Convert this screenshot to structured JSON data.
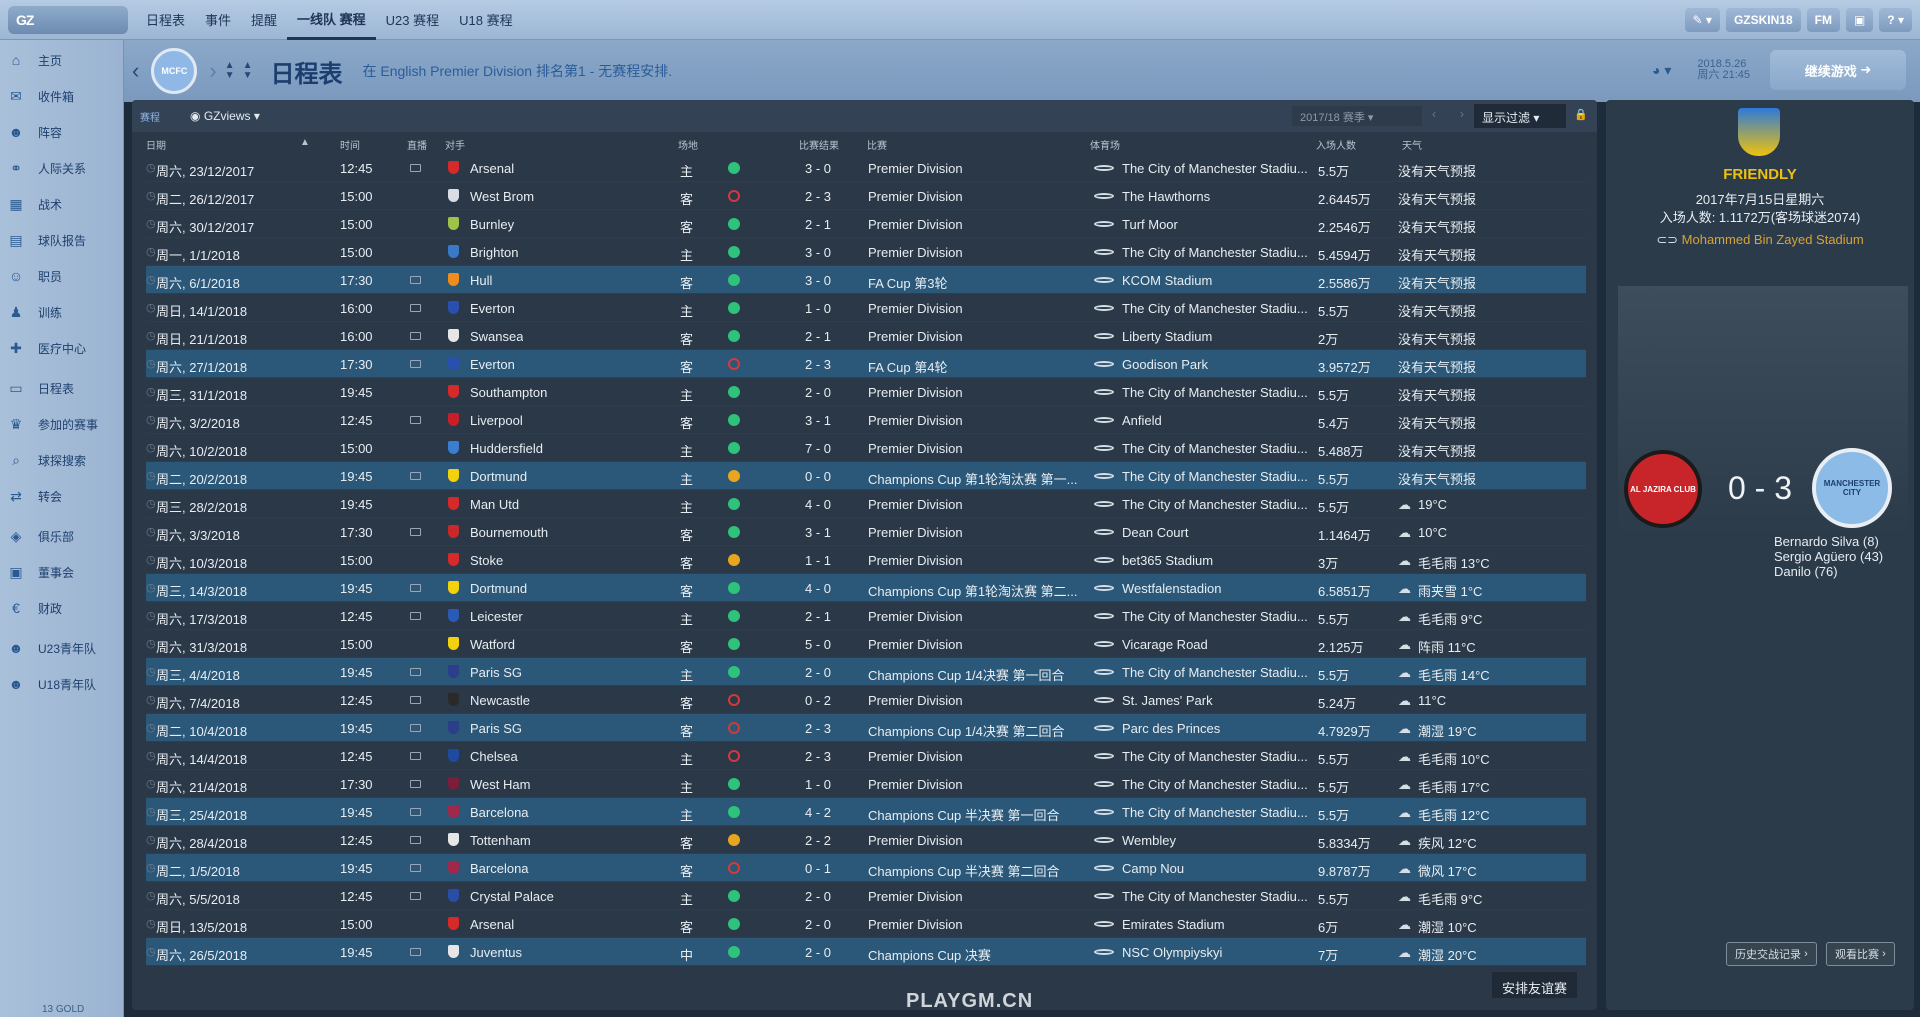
{
  "topbar": {
    "logo": "GZ",
    "tabs": [
      "日程表",
      "事件",
      "提醒",
      "一线队 赛程",
      "U23 赛程",
      "U18 赛程"
    ],
    "active_tab": 3,
    "skin": "GZSKIN18",
    "fm": "FM",
    "help": "?"
  },
  "sidebar": {
    "items": [
      {
        "label": "主页",
        "icon": "home-icon"
      },
      {
        "label": "收件箱",
        "icon": "inbox-icon"
      },
      {
        "label": "阵容",
        "icon": "squad-icon"
      },
      {
        "label": "人际关系",
        "icon": "relationships-icon"
      },
      {
        "label": "战术",
        "icon": "tactics-icon"
      },
      {
        "label": "球队报告",
        "icon": "report-icon"
      },
      {
        "label": "职员",
        "icon": "staff-icon"
      },
      {
        "label": "训练",
        "icon": "training-icon"
      },
      {
        "label": "医疗中心",
        "icon": "medical-icon"
      },
      {
        "label": "日程表",
        "icon": "calendar-icon"
      },
      {
        "label": "参加的赛事",
        "icon": "trophy-icon"
      },
      {
        "label": "球探搜索",
        "icon": "scouting-icon"
      },
      {
        "label": "转会",
        "icon": "transfer-icon"
      },
      {
        "label": "俱乐部",
        "icon": "club-icon"
      },
      {
        "label": "董事会",
        "icon": "board-icon"
      },
      {
        "label": "财政",
        "icon": "finance-icon"
      },
      {
        "label": "U23青年队",
        "icon": "u23-icon"
      },
      {
        "label": "U18青年队",
        "icon": "u18-icon"
      }
    ],
    "gold": "13 GOLD"
  },
  "header": {
    "title": "日程表",
    "subtitle": "在 English Premier Division 排名第1 - 无赛程安排.",
    "date_line1": "2018.5.26",
    "date_line2": "周六 21:45",
    "continue": "继续游戏"
  },
  "toolbar": {
    "tab": "赛程",
    "view": "GZviews",
    "season": "2017/18 赛季",
    "filter": "显示过滤"
  },
  "columns": {
    "date": "日期",
    "time": "时间",
    "tv": "直播",
    "opponent": "对手",
    "venue": "场地",
    "result": "比赛结果",
    "competition": "比赛",
    "stadium": "体育场",
    "attendance": "入场人数",
    "weather": "天气"
  },
  "fixtures": [
    {
      "date": "周六, 23/12/2017",
      "time": "12:45",
      "tv": true,
      "opp": "Arsenal",
      "color": "#d62a2a",
      "venue": "主",
      "res": "win",
      "score": "3 - 0",
      "comp": "Premier Division",
      "stadium": "The City of Manchester Stadiu...",
      "att": "5.5万",
      "weather": "没有天气预报",
      "hl": false
    },
    {
      "date": "周二, 26/12/2017",
      "time": "15:00",
      "tv": false,
      "opp": "West Brom",
      "color": "#d8dde6",
      "venue": "客",
      "res": "lose",
      "score": "2 - 3",
      "comp": "Premier Division",
      "stadium": "The Hawthorns",
      "att": "2.6445万",
      "weather": "没有天气预报",
      "hl": false
    },
    {
      "date": "周六, 30/12/2017",
      "time": "15:00",
      "tv": false,
      "opp": "Burnley",
      "color": "#a0c24a",
      "venue": "客",
      "res": "win",
      "score": "2 - 1",
      "comp": "Premier Division",
      "stadium": "Turf Moor",
      "att": "2.2546万",
      "weather": "没有天气预报",
      "hl": false
    },
    {
      "date": "周一, 1/1/2018",
      "time": "15:00",
      "tv": false,
      "opp": "Brighton",
      "color": "#3a78c8",
      "venue": "主",
      "res": "win",
      "score": "3 - 0",
      "comp": "Premier Division",
      "stadium": "The City of Manchester Stadiu...",
      "att": "5.4594万",
      "weather": "没有天气预报",
      "hl": false
    },
    {
      "date": "周六, 6/1/2018",
      "time": "17:30",
      "tv": true,
      "opp": "Hull",
      "color": "#f08c1c",
      "venue": "客",
      "res": "win",
      "score": "3 - 0",
      "comp": "FA Cup 第3轮",
      "stadium": "KCOM Stadium",
      "att": "2.5586万",
      "weather": "没有天气预报",
      "hl": true
    },
    {
      "date": "周日, 14/1/2018",
      "time": "16:00",
      "tv": true,
      "opp": "Everton",
      "color": "#2850b0",
      "venue": "主",
      "res": "win",
      "score": "1 - 0",
      "comp": "Premier Division",
      "stadium": "The City of Manchester Stadiu...",
      "att": "5.5万",
      "weather": "没有天气预报",
      "hl": false
    },
    {
      "date": "周日, 21/1/2018",
      "time": "16:00",
      "tv": true,
      "opp": "Swansea",
      "color": "#e6e6e6",
      "venue": "客",
      "res": "win",
      "score": "2 - 1",
      "comp": "Premier Division",
      "stadium": "Liberty Stadium",
      "att": "2万",
      "weather": "没有天气预报",
      "hl": false
    },
    {
      "date": "周六, 27/1/2018",
      "time": "17:30",
      "tv": true,
      "opp": "Everton",
      "color": "#2850b0",
      "venue": "客",
      "res": "lose",
      "score": "2 - 3",
      "comp": "FA Cup 第4轮",
      "stadium": "Goodison Park",
      "att": "3.9572万",
      "weather": "没有天气预报",
      "hl": true
    },
    {
      "date": "周三, 31/1/2018",
      "time": "19:45",
      "tv": false,
      "opp": "Southampton",
      "color": "#d62a2a",
      "venue": "主",
      "res": "win",
      "score": "2 - 0",
      "comp": "Premier Division",
      "stadium": "The City of Manchester Stadiu...",
      "att": "5.5万",
      "weather": "没有天气预报",
      "hl": false
    },
    {
      "date": "周六, 3/2/2018",
      "time": "12:45",
      "tv": true,
      "opp": "Liverpool",
      "color": "#c81e2a",
      "venue": "客",
      "res": "win",
      "score": "3 - 1",
      "comp": "Premier Division",
      "stadium": "Anfield",
      "att": "5.4万",
      "weather": "没有天气预报",
      "hl": false
    },
    {
      "date": "周六, 10/2/2018",
      "time": "15:00",
      "tv": false,
      "opp": "Huddersfield",
      "color": "#3a7ed0",
      "venue": "主",
      "res": "win",
      "score": "7 - 0",
      "comp": "Premier Division",
      "stadium": "The City of Manchester Stadiu...",
      "att": "5.488万",
      "weather": "没有天气预报",
      "hl": false
    },
    {
      "date": "周二, 20/2/2018",
      "time": "19:45",
      "tv": true,
      "opp": "Dortmund",
      "color": "#f2d20c",
      "venue": "主",
      "res": "draw",
      "score": "0 - 0",
      "comp": "Champions Cup 第1轮淘汰赛 第一...",
      "stadium": "The City of Manchester Stadiu...",
      "att": "5.5万",
      "weather": "没有天气预报",
      "hl": true
    },
    {
      "date": "周三, 28/2/2018",
      "time": "19:45",
      "tv": false,
      "opp": "Man Utd",
      "color": "#d62a2a",
      "venue": "主",
      "res": "win",
      "score": "4 - 0",
      "comp": "Premier Division",
      "stadium": "The City of Manchester Stadiu...",
      "att": "5.5万",
      "weather": "19°C",
      "hl": false
    },
    {
      "date": "周六, 3/3/2018",
      "time": "17:30",
      "tv": true,
      "opp": "Bournemouth",
      "color": "#c8282a",
      "venue": "客",
      "res": "win",
      "score": "3 - 1",
      "comp": "Premier Division",
      "stadium": "Dean Court",
      "att": "1.1464万",
      "weather": "10°C",
      "hl": false
    },
    {
      "date": "周六, 10/3/2018",
      "time": "15:00",
      "tv": false,
      "opp": "Stoke",
      "color": "#d62a2a",
      "venue": "客",
      "res": "draw",
      "score": "1 - 1",
      "comp": "Premier Division",
      "stadium": "bet365 Stadium",
      "att": "3万",
      "weather": "毛毛雨 13°C",
      "hl": false
    },
    {
      "date": "周三, 14/3/2018",
      "time": "19:45",
      "tv": true,
      "opp": "Dortmund",
      "color": "#f2d20c",
      "venue": "客",
      "res": "win",
      "score": "4 - 0",
      "comp": "Champions Cup 第1轮淘汰赛 第二...",
      "stadium": "Westfalenstadion",
      "att": "6.5851万",
      "weather": "雨夹雪 1°C",
      "hl": true
    },
    {
      "date": "周六, 17/3/2018",
      "time": "12:45",
      "tv": true,
      "opp": "Leicester",
      "color": "#2a5ab8",
      "venue": "主",
      "res": "win",
      "score": "2 - 1",
      "comp": "Premier Division",
      "stadium": "The City of Manchester Stadiu...",
      "att": "5.5万",
      "weather": "毛毛雨 9°C",
      "hl": false
    },
    {
      "date": "周六, 31/3/2018",
      "time": "15:00",
      "tv": false,
      "opp": "Watford",
      "color": "#f2d20c",
      "venue": "客",
      "res": "win",
      "score": "5 - 0",
      "comp": "Premier Division",
      "stadium": "Vicarage Road",
      "att": "2.125万",
      "weather": "阵雨 11°C",
      "hl": false
    },
    {
      "date": "周三, 4/4/2018",
      "time": "19:45",
      "tv": true,
      "opp": "Paris SG",
      "color": "#2a3e8c",
      "venue": "主",
      "res": "win",
      "score": "2 - 0",
      "comp": "Champions Cup 1/4决赛 第一回合",
      "stadium": "The City of Manchester Stadiu...",
      "att": "5.5万",
      "weather": "毛毛雨 14°C",
      "hl": true
    },
    {
      "date": "周六, 7/4/2018",
      "time": "12:45",
      "tv": true,
      "opp": "Newcastle",
      "color": "#2a2a2a",
      "venue": "客",
      "res": "lose",
      "score": "0 - 2",
      "comp": "Premier Division",
      "stadium": "St. James' Park",
      "att": "5.24万",
      "weather": "11°C",
      "hl": false
    },
    {
      "date": "周二, 10/4/2018",
      "time": "19:45",
      "tv": true,
      "opp": "Paris SG",
      "color": "#2a3e8c",
      "venue": "客",
      "res": "lose",
      "score": "2 - 3",
      "comp": "Champions Cup 1/4决赛 第二回合",
      "stadium": "Parc des Princes",
      "att": "4.7929万",
      "weather": "潮湿 19°C",
      "hl": true
    },
    {
      "date": "周六, 14/4/2018",
      "time": "12:45",
      "tv": true,
      "opp": "Chelsea",
      "color": "#1e4aa0",
      "venue": "主",
      "res": "lose",
      "score": "2 - 3",
      "comp": "Premier Division",
      "stadium": "The City of Manchester Stadiu...",
      "att": "5.5万",
      "weather": "毛毛雨 10°C",
      "hl": false
    },
    {
      "date": "周六, 21/4/2018",
      "time": "17:30",
      "tv": true,
      "opp": "West Ham",
      "color": "#7a1e3a",
      "venue": "主",
      "res": "win",
      "score": "1 - 0",
      "comp": "Premier Division",
      "stadium": "The City of Manchester Stadiu...",
      "att": "5.5万",
      "weather": "毛毛雨 17°C",
      "hl": false
    },
    {
      "date": "周三, 25/4/2018",
      "time": "19:45",
      "tv": true,
      "opp": "Barcelona",
      "color": "#a0284a",
      "venue": "主",
      "res": "win",
      "score": "4 - 2",
      "comp": "Champions Cup 半决赛 第一回合",
      "stadium": "The City of Manchester Stadiu...",
      "att": "5.5万",
      "weather": "毛毛雨 12°C",
      "hl": true
    },
    {
      "date": "周六, 28/4/2018",
      "time": "12:45",
      "tv": true,
      "opp": "Tottenham",
      "color": "#e6e6e6",
      "venue": "客",
      "res": "draw",
      "score": "2 - 2",
      "comp": "Premier Division",
      "stadium": "Wembley",
      "att": "5.8334万",
      "weather": "疾风 12°C",
      "hl": false
    },
    {
      "date": "周二, 1/5/2018",
      "time": "19:45",
      "tv": true,
      "opp": "Barcelona",
      "color": "#a0284a",
      "venue": "客",
      "res": "lose",
      "score": "0 - 1",
      "comp": "Champions Cup 半决赛 第二回合",
      "stadium": "Camp Nou",
      "att": "9.8787万",
      "weather": "微风 17°C",
      "hl": true
    },
    {
      "date": "周六, 5/5/2018",
      "time": "12:45",
      "tv": true,
      "opp": "Crystal Palace",
      "color": "#2a4ea8",
      "venue": "主",
      "res": "win",
      "score": "2 - 0",
      "comp": "Premier Division",
      "stadium": "The City of Manchester Stadiu...",
      "att": "5.5万",
      "weather": "毛毛雨 9°C",
      "hl": false
    },
    {
      "date": "周日, 13/5/2018",
      "time": "15:00",
      "tv": false,
      "opp": "Arsenal",
      "color": "#d62a2a",
      "venue": "客",
      "res": "win",
      "score": "2 - 0",
      "comp": "Premier Division",
      "stadium": "Emirates Stadium",
      "att": "6万",
      "weather": "潮湿 10°C",
      "hl": false
    },
    {
      "date": "周六, 26/5/2018",
      "time": "19:45",
      "tv": true,
      "opp": "Juventus",
      "color": "#e6e6e6",
      "venue": "中",
      "res": "win",
      "score": "2 - 0",
      "comp": "Champions Cup 决赛",
      "stadium": "NSC Olympiyskyi",
      "att": "7万",
      "weather": "潮湿 20°C",
      "hl": true
    }
  ],
  "arrange_friendly": "安排友谊赛",
  "match_panel": {
    "type": "FRIENDLY",
    "date": "2017年7月15日星期六",
    "attendance": "入场人数: 1.1172万(客场球迷2074)",
    "stadium": "Mohammed Bin Zayed Stadium",
    "score": "0 - 3",
    "home_badge": "AL JAZIRA CLUB",
    "away_badge": "MANCHESTER CITY",
    "scorers": [
      "Bernardo Silva (8)",
      "Sergio Agüero (43)",
      "Danilo (76)"
    ],
    "history_btn": "历史交战记录",
    "watch_btn": "观看比赛"
  },
  "footer": "PLAYGM.CN"
}
